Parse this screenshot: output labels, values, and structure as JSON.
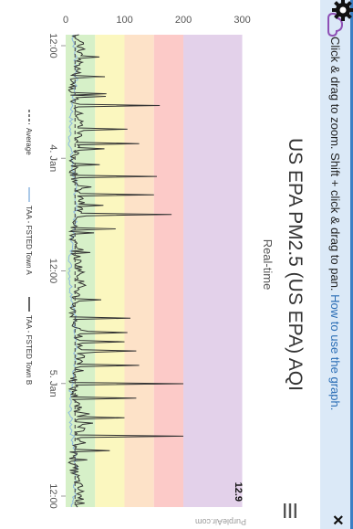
{
  "header": {
    "hint_prefix": "Click & drag to zoom. Shift + click & drag to pan. ",
    "hint_link": "How to use the graph.",
    "close_label": "×"
  },
  "chart_data": {
    "type": "line",
    "title": "US EPA PM2.5 (US EPA) AQI",
    "subtitle": "Real-time",
    "y_ticks": [
      0,
      100,
      200,
      300
    ],
    "ylim": [
      0,
      310
    ],
    "x_ticks": [
      "12:00",
      "4. Jan",
      "12:00",
      "5. Jan",
      "12:00"
    ],
    "current_value_label": "12.9",
    "credit": "PurpleAir.com",
    "bands": [
      {
        "from": 0,
        "to": 50,
        "color": "#d6f0c8"
      },
      {
        "from": 50,
        "to": 100,
        "color": "#fbf7bf"
      },
      {
        "from": 100,
        "to": 150,
        "color": "#fde2c8"
      },
      {
        "from": 150,
        "to": 200,
        "color": "#fccac8"
      },
      {
        "from": 200,
        "to": 300,
        "color": "#e3d1ea"
      }
    ],
    "legend": [
      {
        "name": "Average",
        "style": "dashed",
        "color": "#555555"
      },
      {
        "name": "TAA - FSTED Town A",
        "style": "solid",
        "color": "#8fb7e0"
      },
      {
        "name": "TAA - FSTED Town B",
        "style": "solid",
        "color": "#333333"
      }
    ],
    "series_b_spikes": [
      {
        "t": 0.15,
        "v": 160
      },
      {
        "t": 0.2,
        "v": 105
      },
      {
        "t": 0.23,
        "v": 125
      },
      {
        "t": 0.3,
        "v": 155
      },
      {
        "t": 0.34,
        "v": 150
      },
      {
        "t": 0.38,
        "v": 180
      },
      {
        "t": 0.41,
        "v": 85
      },
      {
        "t": 0.46,
        "v": 90
      },
      {
        "t": 0.6,
        "v": 110
      },
      {
        "t": 0.63,
        "v": 105
      },
      {
        "t": 0.65,
        "v": 100
      },
      {
        "t": 0.67,
        "v": 120
      },
      {
        "t": 0.7,
        "v": 125
      },
      {
        "t": 0.74,
        "v": 200
      },
      {
        "t": 0.77,
        "v": 120
      },
      {
        "t": 0.81,
        "v": 100
      },
      {
        "t": 0.85,
        "v": 200
      },
      {
        "t": 0.88,
        "v": 75
      }
    ]
  }
}
